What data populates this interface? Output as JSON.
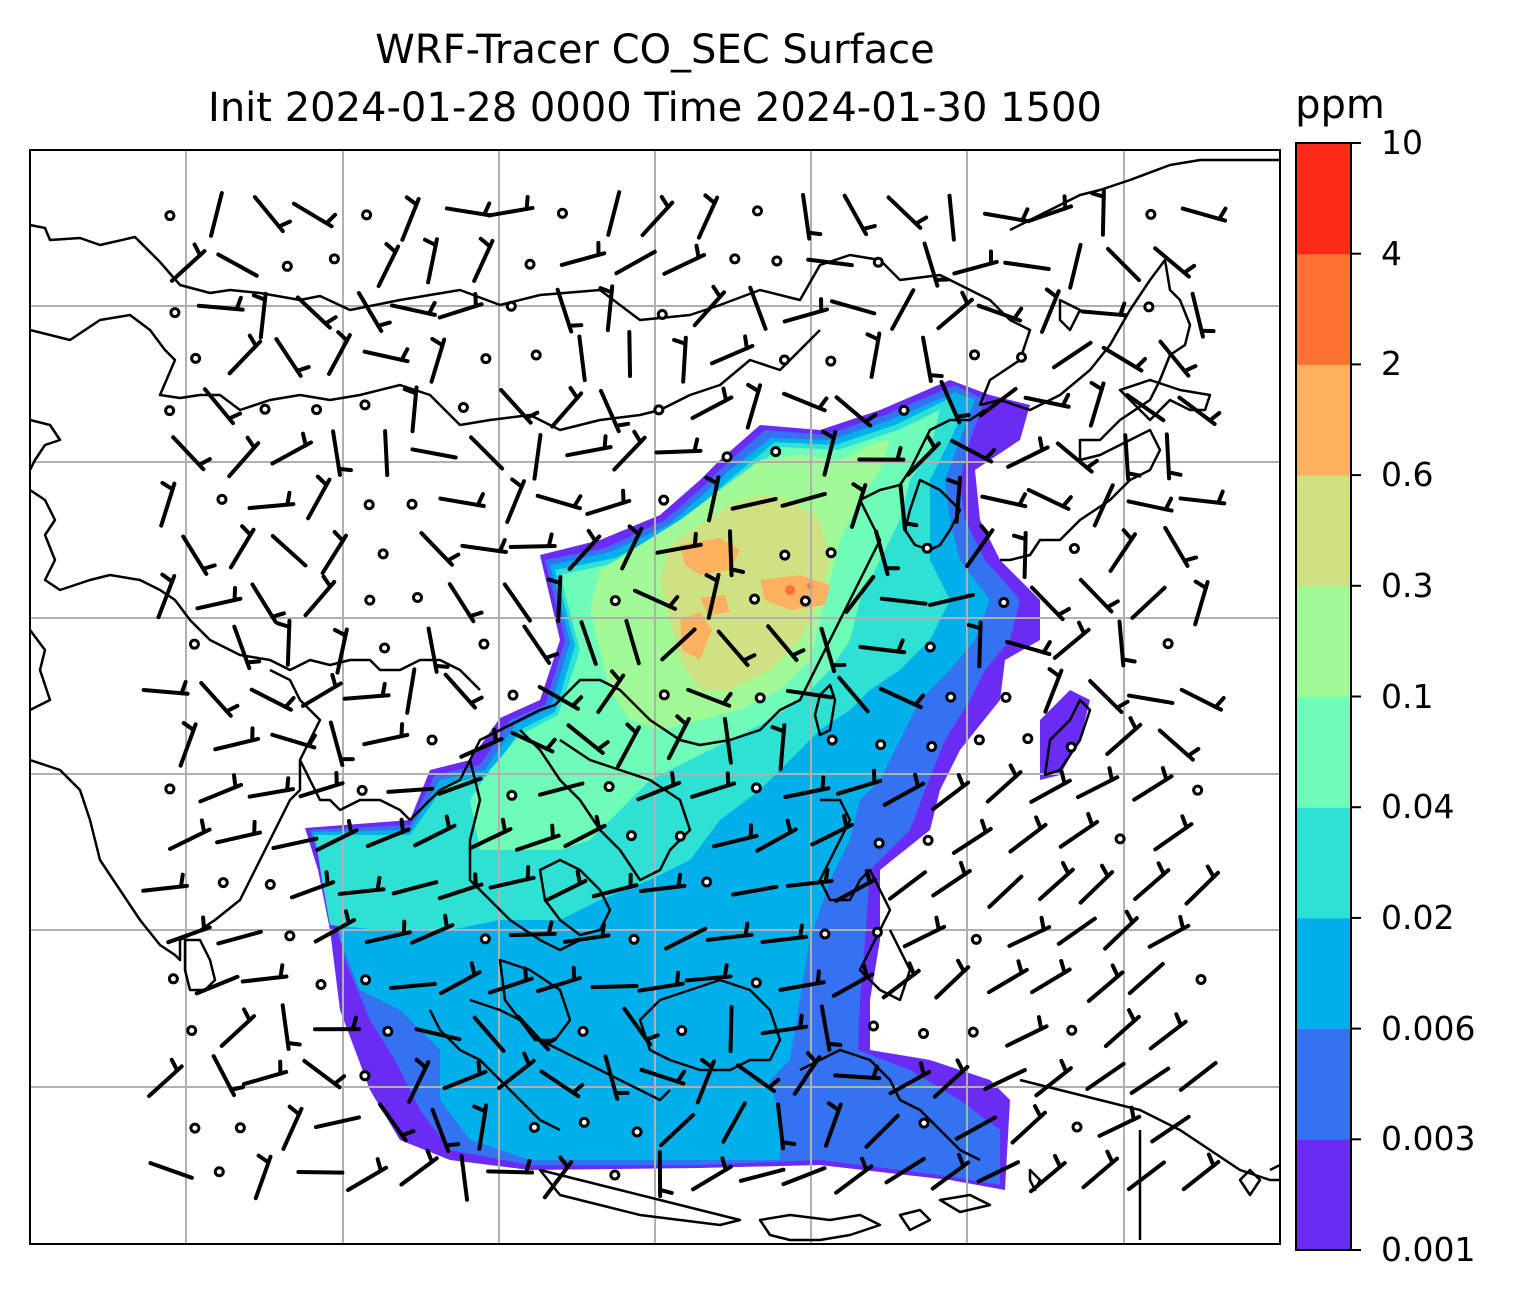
{
  "title": {
    "line1": "WRF-Tracer CO_SEC Surface",
    "line2": "Init 2024-01-28 0000 Time 2024-01-30 1500"
  },
  "colorbar": {
    "label": "ppm",
    "ticks": [
      "0.001",
      "0.003",
      "0.006",
      "0.02",
      "0.04",
      "0.1",
      "0.3",
      "0.6",
      "2",
      "4",
      "10"
    ],
    "colors": [
      "#6a2cf5",
      "#3472f2",
      "#00b0ea",
      "#2fe0d4",
      "#6efcb8",
      "#a2fa96",
      "#cfe283",
      "#ffb060",
      "#ff7036",
      "#fe2a18"
    ]
  },
  "map": {
    "grid": true,
    "land_outline_color": "#000000",
    "gridline_color": "#b0b0b0"
  }
}
